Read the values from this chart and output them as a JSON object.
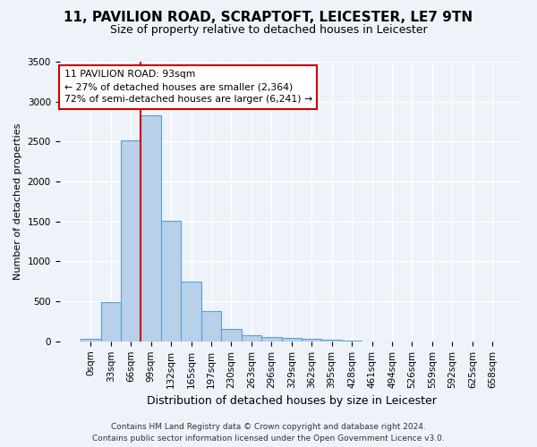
{
  "title_line1": "11, PAVILION ROAD, SCRAPTOFT, LEICESTER, LE7 9TN",
  "title_line2": "Size of property relative to detached houses in Leicester",
  "xlabel": "Distribution of detached houses by size in Leicester",
  "ylabel": "Number of detached properties",
  "bar_values": [
    30,
    490,
    2510,
    2830,
    1510,
    750,
    380,
    150,
    80,
    55,
    45,
    30,
    20,
    5,
    2,
    1,
    1,
    0,
    0,
    0,
    0
  ],
  "bar_labels": [
    "0sqm",
    "33sqm",
    "66sqm",
    "99sqm",
    "132sqm",
    "165sqm",
    "197sqm",
    "230sqm",
    "263sqm",
    "296sqm",
    "329sqm",
    "362sqm",
    "395sqm",
    "428sqm",
    "461sqm",
    "494sqm",
    "526sqm",
    "559sqm",
    "592sqm",
    "625sqm",
    "658sqm"
  ],
  "bar_color": "#b8d0ea",
  "bar_edge_color": "#5a9fd4",
  "vline_x_index": 2.5,
  "vline_color": "#cc0000",
  "annotation_title": "11 PAVILION ROAD: 93sqm",
  "annotation_line1": "← 27% of detached houses are smaller (2,364)",
  "annotation_line2": "72% of semi-detached houses are larger (6,241) →",
  "annotation_box_color": "#ffffff",
  "annotation_box_edge": "#cc0000",
  "ylim": [
    0,
    3500
  ],
  "yticks": [
    0,
    500,
    1000,
    1500,
    2000,
    2500,
    3000,
    3500
  ],
  "footer_line1": "Contains HM Land Registry data © Crown copyright and database right 2024.",
  "footer_line2": "Contains public sector information licensed under the Open Government Licence v3.0.",
  "bg_color": "#eef2f9",
  "grid_color": "#ffffff",
  "title_fontsize": 11,
  "subtitle_fontsize": 9,
  "ylabel_fontsize": 8,
  "xlabel_fontsize": 9,
  "tick_fontsize": 7.5,
  "footer_fontsize": 6.5,
  "annot_fontsize": 7.8
}
